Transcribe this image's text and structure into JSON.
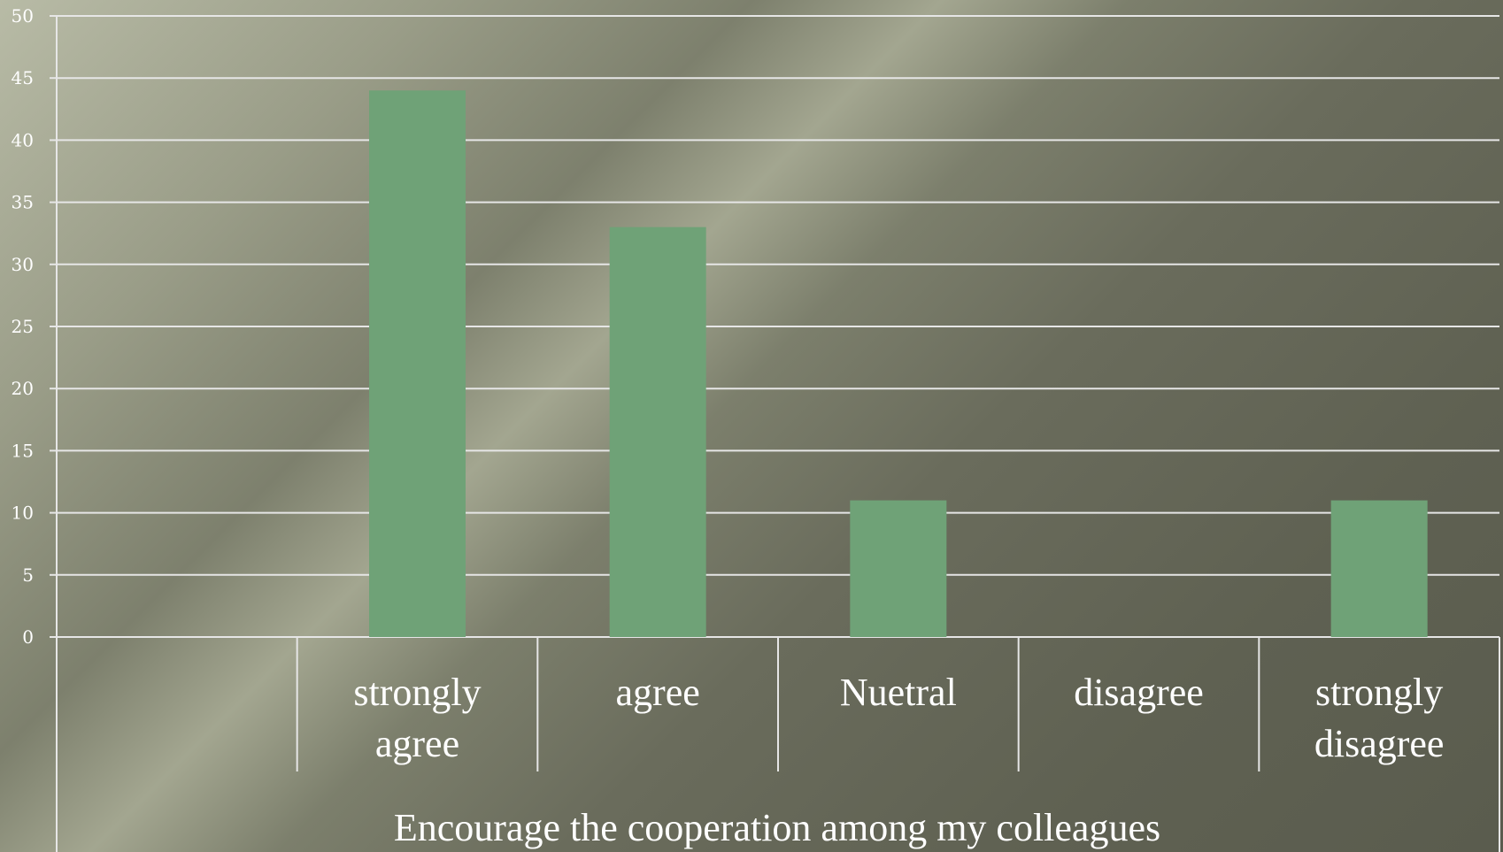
{
  "chart_data": {
    "type": "bar",
    "categories": [
      "",
      "strongly agree",
      "agree",
      "Nuetral",
      "disagree",
      "strongly disagree"
    ],
    "category_lines": [
      [
        ""
      ],
      [
        "strongly",
        "agree"
      ],
      [
        "agree"
      ],
      [
        "Nuetral"
      ],
      [
        "disagree"
      ],
      [
        "strongly",
        "disagree"
      ]
    ],
    "values": [
      0,
      44,
      33,
      11,
      0,
      11
    ],
    "title": "",
    "xlabel": "Encourage the cooperation among my colleagues",
    "ylabel": "",
    "ylim": [
      0,
      50
    ],
    "yticks": [
      "0",
      "5",
      "10",
      "15",
      "20",
      "25",
      "30",
      "35",
      "40",
      "45",
      "50"
    ],
    "grid": true,
    "legend": "none",
    "bar_color": "#6fa277",
    "grid_color": "#e6e6e6"
  }
}
